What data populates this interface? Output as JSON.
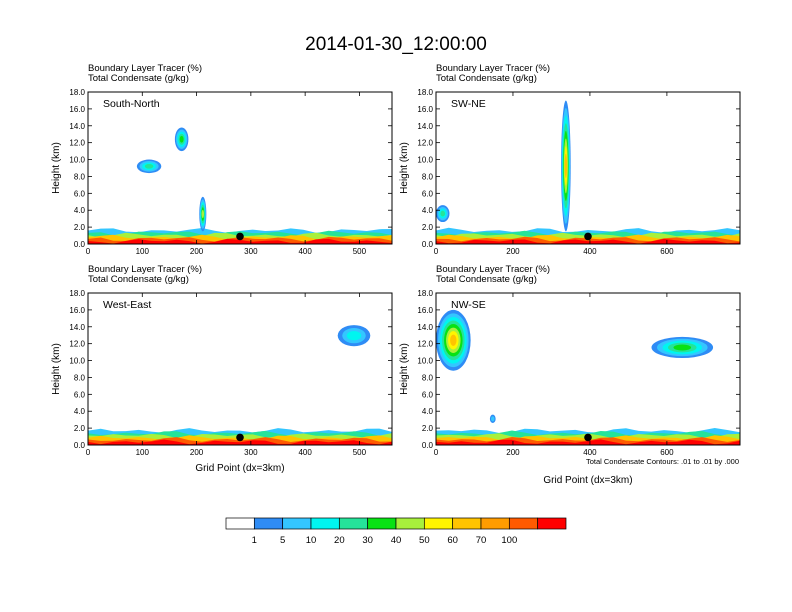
{
  "figure": {
    "title": "2014-01-30_12:00:00",
    "subtitle_line1": "Boundary Layer Tracer   (%)",
    "subtitle_line2": "Total Condensate   (g/kg)",
    "contour_note": "Total Condensate Contours: .01 to .01 by .000"
  },
  "chart_data": [
    {
      "type": "heatmap",
      "panel_label": "South-North",
      "title_lines": [
        "Boundary Layer Tracer   (%)",
        "Total Condensate   (g/kg)"
      ],
      "xlabel": "",
      "ylabel": "Height (km)",
      "xlim": [
        0,
        560
      ],
      "ylim": [
        0,
        18
      ],
      "x_ticks": [
        0,
        100,
        200,
        300,
        400,
        500
      ],
      "y_ticks": [
        "0.0",
        "2.0",
        "4.0",
        "6.0",
        "8.0",
        "10.0",
        "12.0",
        "14.0",
        "16.0",
        "18.0"
      ],
      "marker_point": [
        280,
        0.9
      ],
      "boundary_layer_top_km": 1.6,
      "plumes": [
        {
          "x0": 90,
          "x1": 135,
          "z0": 8.4,
          "z1": 10.0,
          "peak_percent": 20
        },
        {
          "x0": 160,
          "x1": 185,
          "z0": 11.0,
          "z1": 13.8,
          "peak_percent": 30
        },
        {
          "x0": 205,
          "x1": 218,
          "z0": 1.5,
          "z1": 5.6,
          "peak_percent": 40
        }
      ]
    },
    {
      "type": "heatmap",
      "panel_label": "SW-NE",
      "title_lines": [
        "Boundary Layer Tracer   (%)",
        "Total Condensate   (g/kg)"
      ],
      "xlabel": "",
      "ylabel": "Height (km)",
      "xlim": [
        0,
        790
      ],
      "ylim": [
        0,
        18
      ],
      "x_ticks": [
        0,
        200,
        400,
        600
      ],
      "y_ticks": [
        "0.0",
        "2.0",
        "4.0",
        "6.0",
        "8.0",
        "10.0",
        "12.0",
        "14.0",
        "16.0",
        "18.0"
      ],
      "marker_point": [
        395,
        0.9
      ],
      "boundary_layer_top_km": 1.6,
      "plumes": [
        {
          "x0": 0,
          "x1": 35,
          "z0": 2.6,
          "z1": 4.6,
          "peak_percent": 20
        },
        {
          "x0": 325,
          "x1": 350,
          "z0": 1.5,
          "z1": 17.0,
          "peak_percent": 60
        }
      ]
    },
    {
      "type": "heatmap",
      "panel_label": "West-East",
      "title_lines": [
        "Boundary Layer Tracer   (%)",
        "Total Condensate   (g/kg)"
      ],
      "xlabel": "Grid Point (dx=3km)",
      "ylabel": "Height (km)",
      "xlim": [
        0,
        560
      ],
      "ylim": [
        0,
        18
      ],
      "x_ticks": [
        0,
        100,
        200,
        300,
        400,
        500
      ],
      "y_ticks": [
        "0.0",
        "2.0",
        "4.0",
        "6.0",
        "8.0",
        "10.0",
        "12.0",
        "14.0",
        "16.0",
        "18.0"
      ],
      "marker_point": [
        280,
        0.9
      ],
      "boundary_layer_top_km": 1.7,
      "plumes": [
        {
          "x0": 460,
          "x1": 520,
          "z0": 11.7,
          "z1": 14.2,
          "peak_percent": 10
        }
      ]
    },
    {
      "type": "heatmap",
      "panel_label": "NW-SE",
      "title_lines": [
        "Boundary Layer Tracer   (%)",
        "Total Condensate   (g/kg)"
      ],
      "xlabel": "Grid Point (dx=3km)",
      "ylabel": "Height (km)",
      "xlim": [
        0,
        790
      ],
      "ylim": [
        0,
        18
      ],
      "x_ticks": [
        0,
        200,
        400,
        600
      ],
      "y_ticks": [
        "0.0",
        "2.0",
        "4.0",
        "6.0",
        "8.0",
        "10.0",
        "12.0",
        "14.0",
        "16.0",
        "18.0"
      ],
      "marker_point": [
        395,
        0.9
      ],
      "boundary_layer_top_km": 1.7,
      "plumes": [
        {
          "x0": 0,
          "x1": 90,
          "z0": 8.8,
          "z1": 16.0,
          "peak_percent": 60
        },
        {
          "x0": 560,
          "x1": 720,
          "z0": 10.3,
          "z1": 12.8,
          "peak_percent": 30
        },
        {
          "x0": 140,
          "x1": 155,
          "z0": 2.6,
          "z1": 3.6,
          "peak_percent": 5
        }
      ]
    }
  ],
  "colorbar": {
    "labels": [
      "1",
      "5",
      "10",
      "20",
      "30",
      "40",
      "50",
      "60",
      "70",
      "100"
    ],
    "colors": [
      "#ffffff",
      "#2f8cf5",
      "#34c6ff",
      "#00f5f0",
      "#25e39a",
      "#08e214",
      "#a8f03c",
      "#fff500",
      "#ffc400",
      "#ff9c00",
      "#ff5a00",
      "#ff0000"
    ]
  }
}
